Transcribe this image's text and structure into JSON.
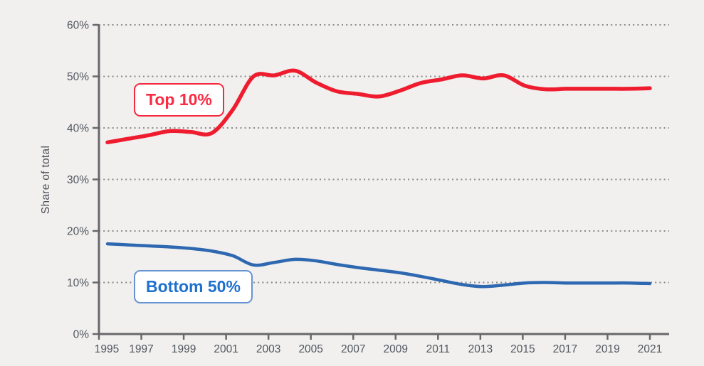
{
  "colors": {
    "background": "#f1f0ee",
    "axis": "#68686c",
    "grid_dots": "#8a8a8a",
    "top10_line": "#ee1c2e",
    "top10_label_text": "#fb2b44",
    "top10_label_border": "#f5293f",
    "bottom50_line": "#2e68b1",
    "bottom50_label_text": "#1e70cf",
    "bottom50_label_border": "#6694d2"
  },
  "chart_data": {
    "type": "line",
    "title": "",
    "xlabel": "",
    "ylabel": "Share of total",
    "xlim": [
      1995,
      2021
    ],
    "ylim": [
      0,
      60
    ],
    "grid": "dotted horizontal gridlines at each 10%",
    "legend_position": "inline annotation boxes on plot",
    "x": [
      1995,
      1996,
      1997,
      1998,
      1999,
      2000,
      2001,
      2002,
      2003,
      2004,
      2005,
      2006,
      2007,
      2008,
      2009,
      2010,
      2011,
      2012,
      2013,
      2014,
      2015,
      2016,
      2017,
      2018,
      2019,
      2020,
      2021
    ],
    "x_tick_labels": [
      "1995",
      "1997",
      "1999",
      "2001",
      "2003",
      "2005",
      "2007",
      "2009",
      "2011",
      "2013",
      "2015",
      "2017",
      "2019",
      "2021"
    ],
    "y_ticks": [
      0,
      10,
      20,
      30,
      40,
      50,
      60
    ],
    "y_tick_labels": [
      "0%",
      "10%",
      "20%",
      "30%",
      "40%",
      "50%",
      "60%"
    ],
    "series": [
      {
        "name": "Top 10%",
        "color": "#ee1c2e",
        "values": [
          37.2,
          37.9,
          38.6,
          39.4,
          39.2,
          39.0,
          43.5,
          50.0,
          50.2,
          51.1,
          48.8,
          47.1,
          46.6,
          46.1,
          47.2,
          48.7,
          49.4,
          50.2,
          49.6,
          50.2,
          48.2,
          47.5,
          47.6,
          47.6,
          47.6,
          47.6,
          47.7
        ]
      },
      {
        "name": "Bottom 50%",
        "color": "#2e68b1",
        "values": [
          17.5,
          17.3,
          17.1,
          16.9,
          16.6,
          16.1,
          15.2,
          13.4,
          13.9,
          14.5,
          14.2,
          13.5,
          12.9,
          12.4,
          11.9,
          11.2,
          10.4,
          9.6,
          9.2,
          9.5,
          9.9,
          10.0,
          9.9,
          9.9,
          9.9,
          9.9,
          9.8
        ]
      }
    ]
  }
}
